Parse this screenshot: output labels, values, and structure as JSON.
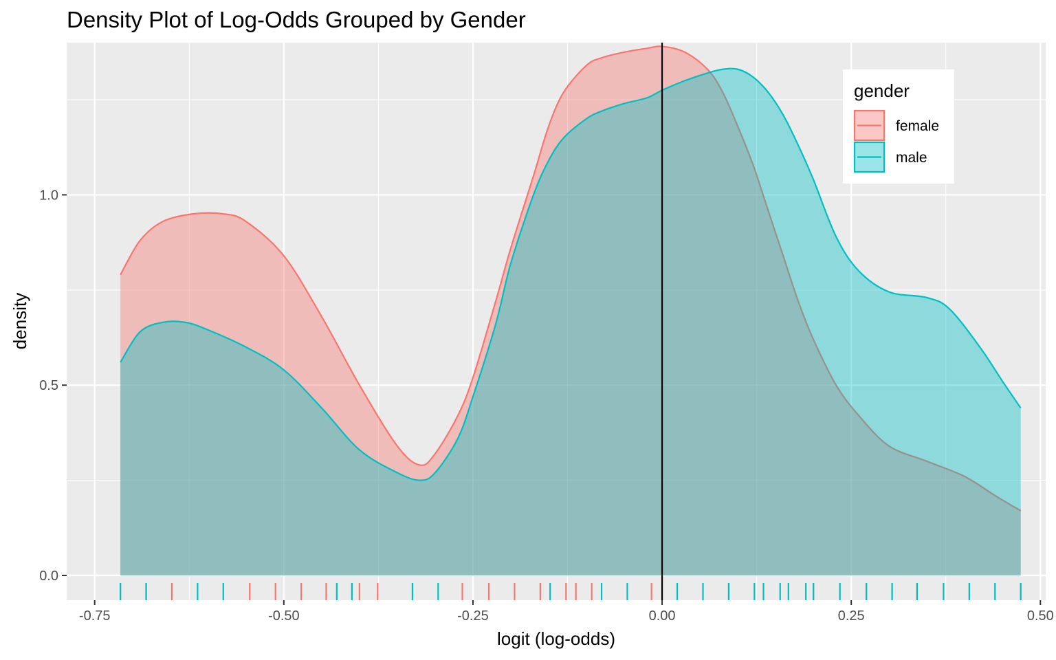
{
  "chart_data": {
    "type": "area",
    "title": "Density Plot of Log-Odds Grouped by Gender",
    "xlabel": "logit (log-odds)",
    "ylabel": "density",
    "xlim": [
      -0.787,
      0.507
    ],
    "ylim": [
      -0.065,
      1.4
    ],
    "x_ticks": [
      -0.75,
      -0.5,
      -0.25,
      0.0,
      0.25,
      0.5
    ],
    "x_tick_labels": [
      "-0.75",
      "-0.50",
      "-0.25",
      "0.00",
      "0.25",
      "0.50"
    ],
    "y_ticks": [
      0.0,
      0.5,
      1.0
    ],
    "y_tick_labels": [
      "0.0",
      "0.5",
      "1.0"
    ],
    "vline_x": 0.0,
    "grid": true,
    "legend": {
      "title": "gender",
      "position": "top-right"
    },
    "series": [
      {
        "name": "female",
        "color": "#F8766D",
        "fill_color": "#F8766D",
        "x": [
          -0.716,
          -0.69,
          -0.66,
          -0.62,
          -0.58,
          -0.55,
          -0.5,
          -0.45,
          -0.4,
          -0.35,
          -0.32,
          -0.3,
          -0.27,
          -0.25,
          -0.22,
          -0.2,
          -0.17,
          -0.15,
          -0.13,
          -0.1,
          -0.08,
          -0.05,
          -0.02,
          0.0,
          0.03,
          0.06,
          0.08,
          0.1,
          0.12,
          0.14,
          0.16,
          0.18,
          0.2,
          0.23,
          0.26,
          0.3,
          0.35,
          0.4,
          0.44,
          0.474
        ],
        "y": [
          0.79,
          0.88,
          0.93,
          0.95,
          0.95,
          0.93,
          0.84,
          0.68,
          0.5,
          0.34,
          0.29,
          0.32,
          0.42,
          0.52,
          0.72,
          0.86,
          1.05,
          1.18,
          1.27,
          1.34,
          1.36,
          1.375,
          1.385,
          1.39,
          1.375,
          1.33,
          1.27,
          1.18,
          1.08,
          0.96,
          0.84,
          0.72,
          0.62,
          0.5,
          0.42,
          0.34,
          0.3,
          0.26,
          0.21,
          0.17
        ]
      },
      {
        "name": "male",
        "color": "#00BFC4",
        "fill_color": "#00BFC4",
        "x": [
          -0.716,
          -0.69,
          -0.66,
          -0.63,
          -0.6,
          -0.55,
          -0.5,
          -0.45,
          -0.4,
          -0.35,
          -0.32,
          -0.3,
          -0.27,
          -0.25,
          -0.22,
          -0.2,
          -0.17,
          -0.15,
          -0.13,
          -0.1,
          -0.08,
          -0.05,
          -0.02,
          0.0,
          0.03,
          0.06,
          0.08,
          0.1,
          0.12,
          0.14,
          0.16,
          0.18,
          0.2,
          0.23,
          0.26,
          0.3,
          0.35,
          0.38,
          0.42,
          0.45,
          0.474
        ],
        "y": [
          0.56,
          0.64,
          0.665,
          0.665,
          0.645,
          0.6,
          0.54,
          0.44,
          0.33,
          0.27,
          0.25,
          0.27,
          0.36,
          0.47,
          0.66,
          0.82,
          1.0,
          1.09,
          1.15,
          1.2,
          1.22,
          1.24,
          1.255,
          1.275,
          1.3,
          1.32,
          1.33,
          1.33,
          1.31,
          1.27,
          1.21,
          1.13,
          1.04,
          0.89,
          0.8,
          0.745,
          0.73,
          0.7,
          0.6,
          0.51,
          0.44
        ]
      }
    ],
    "rug": [
      {
        "series": "female",
        "x": [
          -0.716,
          -0.682,
          -0.648,
          -0.545,
          -0.511,
          -0.477,
          -0.444,
          -0.4,
          -0.376,
          -0.264,
          -0.229,
          -0.195,
          -0.161,
          -0.127,
          -0.114,
          -0.093,
          -0.014,
          0.2,
          0.27,
          0.337,
          0.474
        ]
      },
      {
        "series": "male",
        "x": [
          -0.716,
          -0.682,
          -0.614,
          -0.58,
          -0.43,
          -0.41,
          -0.33,
          -0.296,
          -0.148,
          -0.08,
          -0.046,
          0.02,
          0.054,
          0.088,
          0.122,
          0.134,
          0.156,
          0.167,
          0.19,
          0.2,
          0.235,
          0.27,
          0.304,
          0.337,
          0.372,
          0.406,
          0.44,
          0.474
        ]
      }
    ]
  }
}
